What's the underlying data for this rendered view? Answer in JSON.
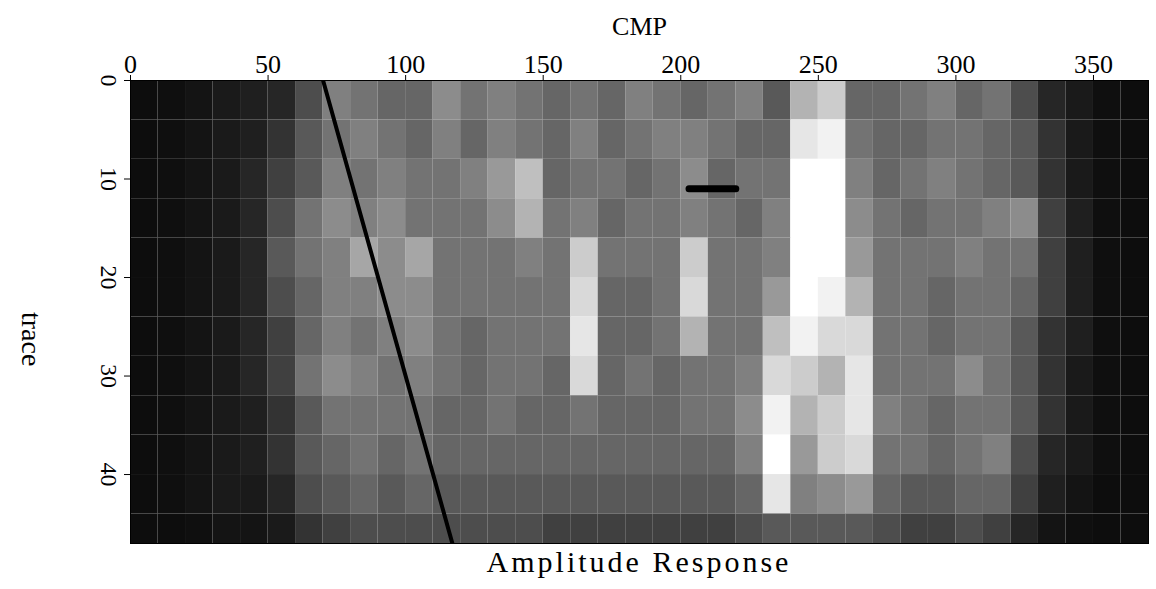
{
  "chart_data": {
    "type": "heatmap",
    "title": "Amplitude Response",
    "xlabel": "CMP",
    "ylabel": "trace",
    "xlim": [
      0,
      370
    ],
    "ylim": [
      0,
      47
    ],
    "xticks": [
      0,
      50,
      100,
      150,
      200,
      250,
      300,
      350
    ],
    "yticks": [
      0,
      10,
      20,
      30,
      40
    ],
    "color_range": [
      0,
      1
    ],
    "x_edges": [
      0,
      10,
      20,
      30,
      40,
      50,
      60,
      70,
      80,
      90,
      100,
      110,
      120,
      130,
      140,
      150,
      160,
      170,
      180,
      190,
      200,
      210,
      220,
      230,
      240,
      250,
      260,
      270,
      280,
      290,
      300,
      310,
      320,
      330,
      340,
      350,
      360,
      370
    ],
    "y_edges": [
      0,
      4,
      8,
      12,
      16,
      20,
      24,
      28,
      32,
      36,
      40,
      44,
      47
    ],
    "cells": [
      [
        0.05,
        0.06,
        0.08,
        0.1,
        0.12,
        0.15,
        0.3,
        0.5,
        0.45,
        0.4,
        0.4,
        0.55,
        0.45,
        0.5,
        0.45,
        0.4,
        0.45,
        0.4,
        0.5,
        0.45,
        0.4,
        0.45,
        0.5,
        0.35,
        0.7,
        0.8,
        0.4,
        0.4,
        0.45,
        0.5,
        0.4,
        0.45,
        0.3,
        0.15,
        0.1,
        0.06,
        0.05
      ],
      [
        0.05,
        0.06,
        0.08,
        0.1,
        0.12,
        0.2,
        0.35,
        0.45,
        0.5,
        0.45,
        0.4,
        0.5,
        0.4,
        0.5,
        0.45,
        0.4,
        0.5,
        0.4,
        0.45,
        0.5,
        0.5,
        0.45,
        0.4,
        0.4,
        0.9,
        0.95,
        0.45,
        0.4,
        0.4,
        0.45,
        0.45,
        0.4,
        0.35,
        0.2,
        0.1,
        0.06,
        0.05
      ],
      [
        0.05,
        0.06,
        0.08,
        0.1,
        0.15,
        0.25,
        0.35,
        0.5,
        0.45,
        0.5,
        0.45,
        0.45,
        0.5,
        0.6,
        0.75,
        0.4,
        0.45,
        0.45,
        0.4,
        0.45,
        0.55,
        0.4,
        0.45,
        0.45,
        1,
        1,
        0.5,
        0.4,
        0.45,
        0.5,
        0.45,
        0.4,
        0.35,
        0.2,
        0.1,
        0.06,
        0.05
      ],
      [
        0.05,
        0.06,
        0.08,
        0.1,
        0.15,
        0.3,
        0.45,
        0.55,
        0.5,
        0.55,
        0.45,
        0.45,
        0.45,
        0.55,
        0.7,
        0.45,
        0.5,
        0.4,
        0.45,
        0.45,
        0.5,
        0.45,
        0.4,
        0.5,
        1,
        1,
        0.55,
        0.45,
        0.4,
        0.45,
        0.45,
        0.5,
        0.55,
        0.25,
        0.12,
        0.06,
        0.05
      ],
      [
        0.05,
        0.06,
        0.08,
        0.1,
        0.15,
        0.35,
        0.45,
        0.5,
        0.65,
        0.55,
        0.65,
        0.45,
        0.45,
        0.45,
        0.5,
        0.45,
        0.8,
        0.45,
        0.45,
        0.45,
        0.8,
        0.45,
        0.45,
        0.5,
        1,
        1,
        0.6,
        0.45,
        0.45,
        0.45,
        0.5,
        0.45,
        0.45,
        0.25,
        0.12,
        0.06,
        0.05
      ],
      [
        0.05,
        0.06,
        0.08,
        0.1,
        0.15,
        0.3,
        0.4,
        0.5,
        0.5,
        0.55,
        0.55,
        0.45,
        0.45,
        0.45,
        0.45,
        0.45,
        0.85,
        0.4,
        0.4,
        0.45,
        0.85,
        0.45,
        0.45,
        0.6,
        1,
        0.95,
        0.7,
        0.45,
        0.45,
        0.4,
        0.45,
        0.45,
        0.4,
        0.25,
        0.12,
        0.06,
        0.05
      ],
      [
        0.05,
        0.06,
        0.08,
        0.1,
        0.15,
        0.25,
        0.4,
        0.5,
        0.45,
        0.5,
        0.55,
        0.45,
        0.4,
        0.45,
        0.45,
        0.45,
        0.9,
        0.4,
        0.4,
        0.45,
        0.7,
        0.45,
        0.45,
        0.75,
        0.95,
        0.85,
        0.85,
        0.45,
        0.45,
        0.4,
        0.45,
        0.45,
        0.35,
        0.2,
        0.12,
        0.06,
        0.05
      ],
      [
        0.05,
        0.06,
        0.08,
        0.1,
        0.15,
        0.25,
        0.45,
        0.55,
        0.5,
        0.45,
        0.5,
        0.45,
        0.4,
        0.45,
        0.45,
        0.4,
        0.85,
        0.4,
        0.45,
        0.4,
        0.45,
        0.45,
        0.5,
        0.85,
        0.8,
        0.7,
        0.9,
        0.45,
        0.45,
        0.45,
        0.55,
        0.45,
        0.35,
        0.2,
        0.1,
        0.06,
        0.05
      ],
      [
        0.05,
        0.06,
        0.08,
        0.1,
        0.12,
        0.2,
        0.35,
        0.45,
        0.45,
        0.45,
        0.45,
        0.4,
        0.4,
        0.45,
        0.4,
        0.4,
        0.45,
        0.4,
        0.4,
        0.4,
        0.45,
        0.45,
        0.55,
        0.95,
        0.7,
        0.8,
        0.9,
        0.5,
        0.45,
        0.4,
        0.45,
        0.45,
        0.35,
        0.2,
        0.1,
        0.06,
        0.05
      ],
      [
        0.05,
        0.06,
        0.08,
        0.1,
        0.12,
        0.2,
        0.35,
        0.4,
        0.45,
        0.4,
        0.45,
        0.4,
        0.4,
        0.4,
        0.4,
        0.4,
        0.4,
        0.4,
        0.4,
        0.4,
        0.4,
        0.4,
        0.5,
        1,
        0.6,
        0.8,
        0.85,
        0.45,
        0.45,
        0.4,
        0.45,
        0.5,
        0.3,
        0.15,
        0.1,
        0.06,
        0.05
      ],
      [
        0.05,
        0.06,
        0.08,
        0.1,
        0.1,
        0.15,
        0.3,
        0.35,
        0.4,
        0.35,
        0.4,
        0.35,
        0.35,
        0.35,
        0.35,
        0.35,
        0.35,
        0.35,
        0.35,
        0.35,
        0.35,
        0.35,
        0.4,
        0.9,
        0.5,
        0.55,
        0.6,
        0.4,
        0.35,
        0.35,
        0.4,
        0.4,
        0.25,
        0.12,
        0.08,
        0.05,
        0.05
      ],
      [
        0.05,
        0.05,
        0.06,
        0.08,
        0.08,
        0.1,
        0.2,
        0.25,
        0.3,
        0.3,
        0.3,
        0.3,
        0.3,
        0.3,
        0.3,
        0.25,
        0.25,
        0.25,
        0.25,
        0.25,
        0.25,
        0.25,
        0.3,
        0.35,
        0.35,
        0.35,
        0.35,
        0.3,
        0.25,
        0.25,
        0.3,
        0.25,
        0.15,
        0.08,
        0.06,
        0.05,
        0.05
      ]
    ],
    "lines": [
      {
        "x": [
          70,
          117
        ],
        "y": [
          0,
          47
        ],
        "color": "#000000"
      },
      {
        "x": [
          203,
          220
        ],
        "y": [
          11,
          11
        ],
        "color": "#000000"
      }
    ]
  }
}
